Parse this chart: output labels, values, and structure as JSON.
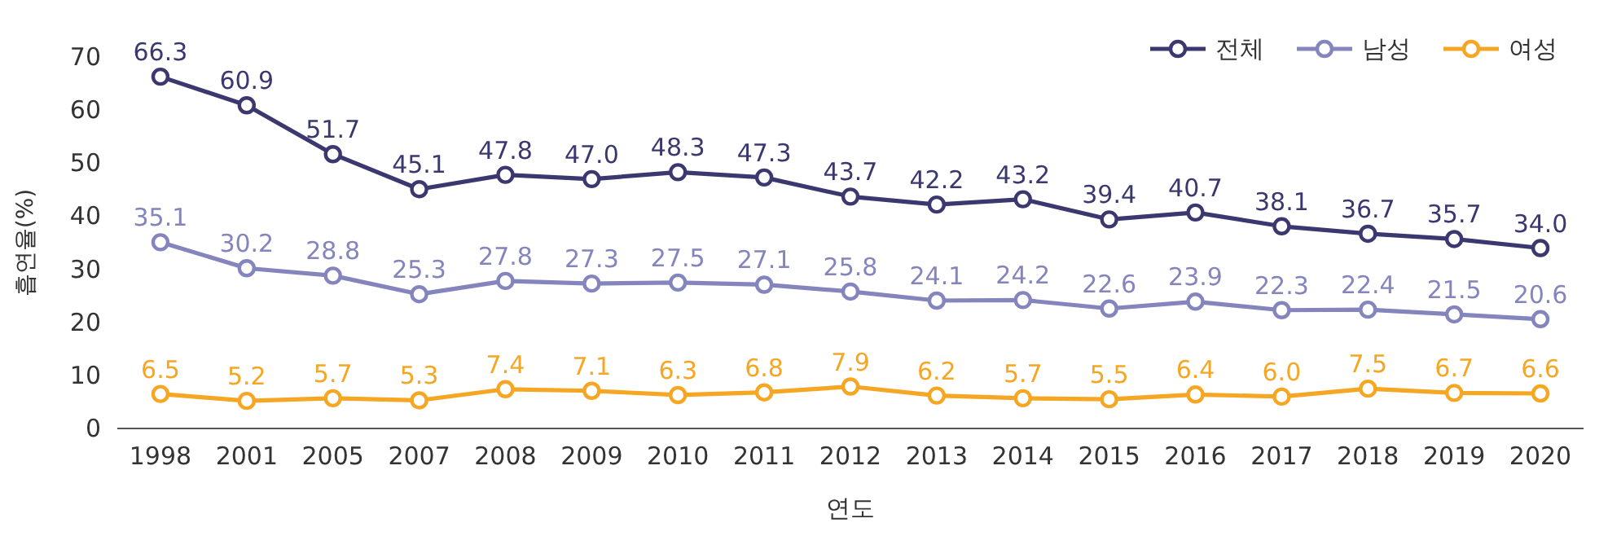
{
  "chart_data": {
    "type": "line",
    "xlabel": "연도",
    "ylabel": "흡연율(%)",
    "categories": [
      "1998",
      "2001",
      "2005",
      "2007",
      "2008",
      "2009",
      "2010",
      "2011",
      "2012",
      "2013",
      "2014",
      "2015",
      "2016",
      "2017",
      "2018",
      "2019",
      "2020"
    ],
    "series": [
      {
        "name": "전체",
        "color": "#3b3870",
        "values": [
          66.3,
          60.9,
          51.7,
          45.1,
          47.8,
          47.0,
          48.3,
          47.3,
          43.7,
          42.2,
          43.2,
          39.4,
          40.7,
          38.1,
          36.7,
          35.7,
          34.0
        ],
        "value_labels": [
          "66.3",
          "60.9",
          "51.7",
          "45.1",
          "47.8",
          "47.0",
          "48.3",
          "47.3",
          "43.7",
          "42.2",
          "43.2",
          "39.4",
          "40.7",
          "38.1",
          "36.7",
          "35.7",
          "34.0"
        ]
      },
      {
        "name": "남성",
        "color": "#8585bd",
        "values": [
          35.1,
          30.2,
          28.8,
          25.3,
          27.8,
          27.3,
          27.5,
          27.1,
          25.8,
          24.1,
          24.2,
          22.6,
          23.9,
          22.3,
          22.4,
          21.5,
          20.6
        ],
        "value_labels": [
          "35.1",
          "30.2",
          "28.8",
          "25.3",
          "27.8",
          "27.3",
          "27.5",
          "27.1",
          "25.8",
          "24.1",
          "24.2",
          "22.6",
          "23.9",
          "22.3",
          "22.4",
          "21.5",
          "20.6"
        ]
      },
      {
        "name": "여성",
        "color": "#f5a623",
        "values": [
          6.5,
          5.2,
          5.7,
          5.3,
          7.4,
          7.1,
          6.3,
          6.8,
          7.9,
          6.2,
          5.7,
          5.5,
          6.4,
          6.0,
          7.5,
          6.7,
          6.6
        ],
        "value_labels": [
          "6.5",
          "5.2",
          "5.7",
          "5.3",
          "7.4",
          "7.1",
          "6.3",
          "6.8",
          "7.9",
          "6.2",
          "5.7",
          "5.5",
          "6.4",
          "6.0",
          "7.5",
          "6.7",
          "6.6"
        ]
      }
    ],
    "ylim": [
      0,
      70
    ],
    "yticks": [
      0,
      10,
      20,
      30,
      40,
      50,
      60,
      70
    ],
    "legend": "top right",
    "marker": "circle",
    "line_style": "solid"
  }
}
